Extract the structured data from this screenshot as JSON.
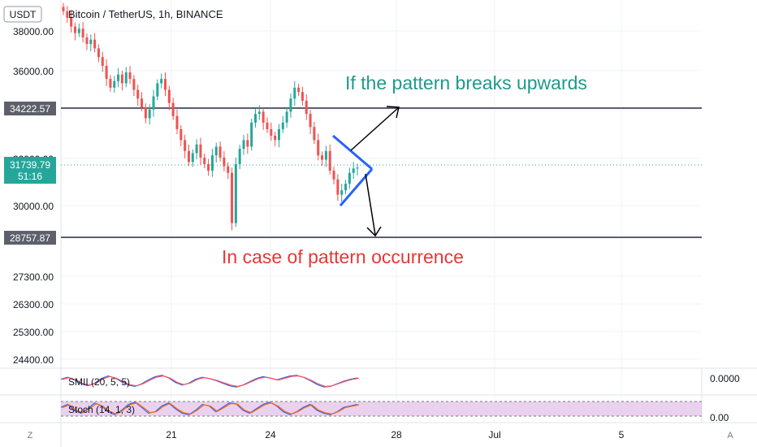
{
  "chart_data": {
    "type": "candlestick",
    "title": "Bitcoin / TetherUS, 1h, BINANCE",
    "currency": "USDT",
    "y_ticks": [
      "38000.00",
      "36000.00",
      "32000.00",
      "30000.00",
      "27300.00",
      "26300.00",
      "25300.00",
      "24400.00"
    ],
    "x_ticks": [
      "21",
      "24",
      "28",
      "Jul",
      "5"
    ],
    "levels": [
      {
        "value": "34222.57",
        "color": "#5d606b"
      },
      {
        "value": "28757.87",
        "color": "#5d606b"
      }
    ],
    "current_price": {
      "value": "31739.79",
      "countdown": "51:16",
      "color": "#26a69a"
    },
    "annotations": [
      {
        "text": "If the pattern breaks upwards",
        "color": "#1e9a8a"
      },
      {
        "text": "In case of pattern occurrence",
        "color": "#e53935"
      }
    ],
    "price_closes": [
      38900,
      38600,
      38200,
      37900,
      38100,
      37700,
      37400,
      37600,
      37200,
      36800,
      36400,
      35800,
      35400,
      35700,
      36000,
      35600,
      36100,
      35800,
      35300,
      34900,
      34500,
      34000,
      34400,
      35000,
      35600,
      35800,
      35300,
      34700,
      34100,
      33500,
      33000,
      32500,
      32000,
      32400,
      32800,
      32200,
      31900,
      31600,
      32300,
      32700,
      32200,
      31800,
      31500,
      29200,
      31900,
      32600,
      33000,
      32700,
      33800,
      34200,
      34300,
      33800,
      33500,
      33200,
      33000,
      33500,
      33800,
      34300,
      34900,
      35400,
      35200,
      34800,
      34200,
      33600,
      33000,
      32300,
      32100,
      32500,
      31600,
      31200,
      30500,
      30700,
      31000,
      31500,
      31700,
      31739
    ],
    "indicators": [
      {
        "name": "SMII (20, 5, 5)",
        "value": "0.0000",
        "series": [
          0.3,
          0.6,
          0.2,
          -0.4,
          -0.7,
          -0.3,
          0.4,
          0.8,
          0.5,
          -0.1,
          -0.6,
          -0.8,
          -0.4,
          0.2,
          0.7,
          0.9,
          0.5,
          -0.2,
          -0.6,
          -0.3,
          0.3,
          0.6,
          0.4,
          0.1,
          -0.3,
          -0.7,
          -0.9,
          -0.6,
          -0.1,
          0.4,
          0.7,
          0.5,
          0.2,
          0.5,
          0.8,
          0.9,
          0.6,
          0.1,
          -0.5,
          -0.9,
          -0.8,
          -0.4,
          0.0,
          0.3,
          0.5
        ]
      },
      {
        "name": "Stoch (14, 1, 3)",
        "value": "0.00",
        "series": [
          60,
          80,
          40,
          20,
          50,
          90,
          70,
          30,
          10,
          40,
          80,
          95,
          60,
          20,
          30,
          70,
          90,
          50,
          20,
          10,
          40,
          80,
          70,
          30,
          60,
          90,
          85,
          40,
          20,
          50,
          80,
          95,
          70,
          30,
          10,
          30,
          60,
          80,
          40,
          20,
          10,
          30,
          60,
          70,
          80
        ]
      }
    ],
    "corner_labels": {
      "left": "Z",
      "right": "A"
    }
  }
}
